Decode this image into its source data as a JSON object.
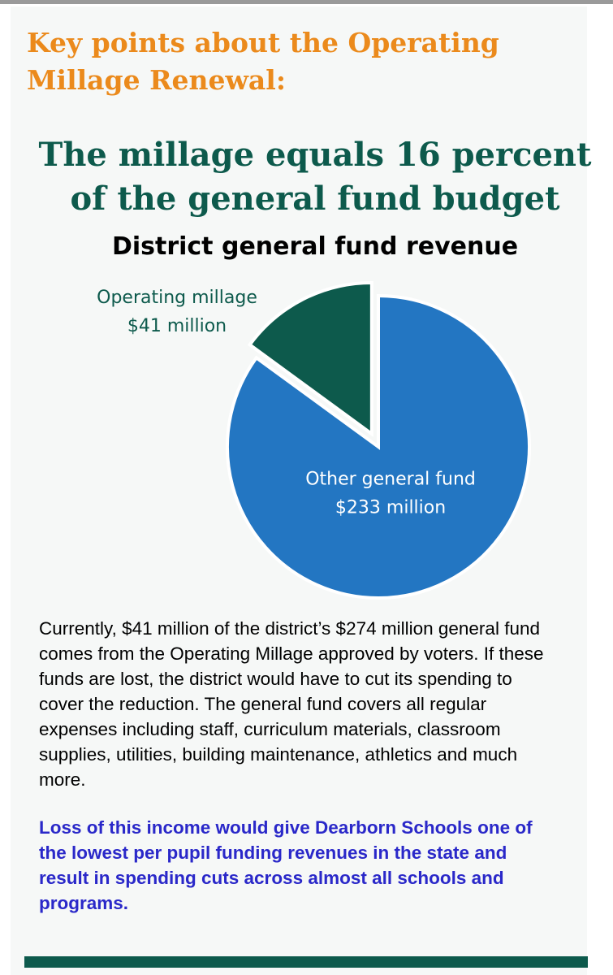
{
  "page": {
    "kicker": "Key points about the Operating Millage Renewal:",
    "headline": "The millage equals 16 percent of the general fund budget",
    "body_text": "Currently, $41 million of the district’s $274 million general fund comes from the Operating Millage approved by voters. If these funds are lost, the district would have to cut its spending to cover the reduction. The general fund covers all regular expenses including staff, curriculum materials, classroom supplies, utilities, building maintenance, athletics and much more.",
    "callout": "Loss of this income would give Dearborn Schools one of the lowest per pupil funding revenues in the state and result in spending cuts across almost all schools and programs."
  },
  "colors": {
    "kicker": "#eb8a1c",
    "headline": "#0d5a4c",
    "callout": "#2a28c9",
    "bottom_bar": "#0d5a4c"
  },
  "chart_data": {
    "type": "pie",
    "title": "District general fund revenue",
    "unit": "million dollars",
    "exploded": "Operating millage",
    "series": [
      {
        "label": "Operating millage",
        "value_text": "$41 million",
        "value": 41,
        "color": "#0d5a4c",
        "label_color": "#0d5a4c",
        "label_position": "outside-left"
      },
      {
        "label": "Other general fund",
        "value_text": "$233 million",
        "value": 233,
        "color": "#2376c2",
        "label_color": "#ffffff",
        "label_position": "inside"
      }
    ]
  }
}
